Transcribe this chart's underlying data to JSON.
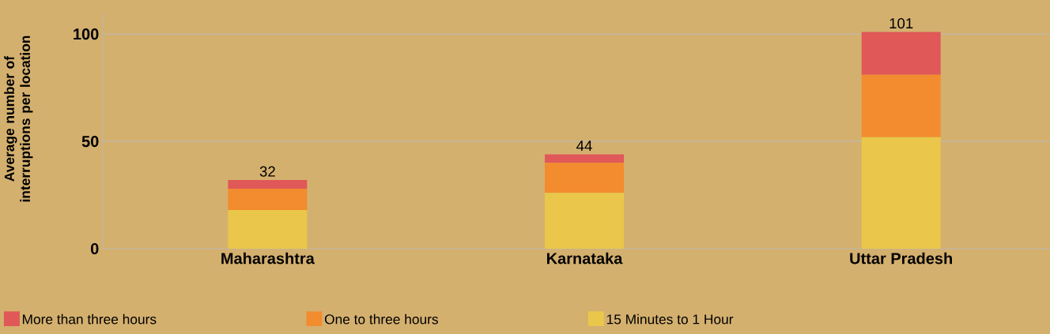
{
  "chart_data": {
    "type": "bar",
    "stacked": true,
    "ylabel": "Average number of interruptions per location",
    "categories": [
      "Maharashtra",
      "Karnataka",
      "Uttar Pradesh"
    ],
    "series": [
      {
        "name": "15 Minutes to 1 Hour",
        "color": "#eac74a",
        "values": [
          18,
          26,
          52
        ]
      },
      {
        "name": "One to three hours",
        "color": "#f28c2e",
        "values": [
          10,
          14,
          29
        ]
      },
      {
        "name": "More than three hours",
        "color": "#e05858",
        "values": [
          4,
          4,
          20
        ]
      }
    ],
    "totals": [
      "32",
      "44",
      "101"
    ],
    "ylim": [
      0,
      110
    ],
    "yticks": [
      0,
      50,
      100
    ],
    "grid": "y",
    "legend": "bottom"
  }
}
